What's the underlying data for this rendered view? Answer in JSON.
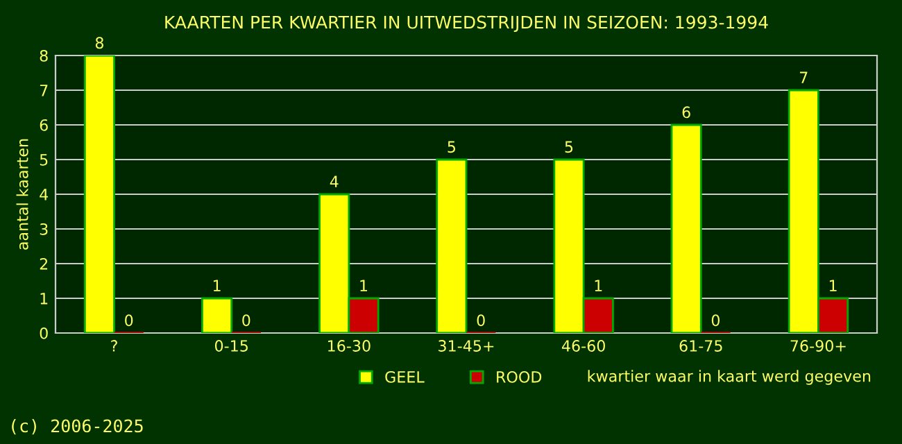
{
  "chart_data": {
    "type": "bar",
    "title": "KAARTEN PER KWARTIER IN UITWEDSTRIJDEN IN SEIZOEN: 1993-1994",
    "xlabel": "kwartier waar in kaart werd gegeven",
    "ylabel": "aantal kaarten",
    "categories": [
      "?",
      "0-15",
      "16-30",
      "31-45+",
      "46-60",
      "61-75",
      "76-90+"
    ],
    "series": [
      {
        "name": "GEEL",
        "color": "#ffff00",
        "values": [
          8,
          1,
          4,
          5,
          5,
          6,
          7
        ]
      },
      {
        "name": "ROOD",
        "color": "#cc0000",
        "values": [
          0,
          0,
          1,
          0,
          1,
          0,
          1
        ]
      }
    ],
    "ylim": [
      0,
      8
    ],
    "yticks": [
      0,
      1,
      2,
      3,
      4,
      5,
      6,
      7,
      8
    ],
    "grid": "y",
    "legend": "bottom",
    "data_labels": true,
    "annotations": [
      "(c) 2006-2025"
    ]
  }
}
